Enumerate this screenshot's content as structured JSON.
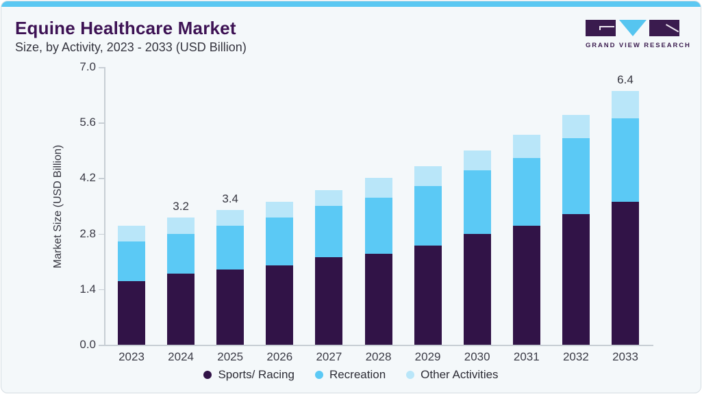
{
  "header": {
    "title": "Equine Healthcare Market",
    "subtitle": "Size, by Activity, 2023 - 2033 (USD Billion)"
  },
  "logo": {
    "text": "GRAND VIEW RESEARCH",
    "mark_colors": {
      "blocks": "#3a1b4e",
      "triangle": "#56c5f0"
    }
  },
  "colors": {
    "accent_strip": "#5bc8f2",
    "card_background": "#f4f8fa",
    "title_text": "#3d1254",
    "axis_line": "#c7ced4",
    "axis_text": "#3a3a45"
  },
  "chart_data": {
    "type": "bar",
    "stacked": true,
    "title": "Equine Healthcare Market Size, by Activity, 2023 - 2033 (USD Billion)",
    "xlabel": "",
    "ylabel": "Market Size (USD Billion)",
    "ylim": [
      0,
      7.0
    ],
    "yticks": [
      0.0,
      1.4,
      2.8,
      4.2,
      5.6,
      7.0
    ],
    "grid": false,
    "legend_position": "bottom",
    "categories": [
      "2023",
      "2024",
      "2025",
      "2026",
      "2027",
      "2028",
      "2029",
      "2030",
      "2031",
      "2032",
      "2033"
    ],
    "series": [
      {
        "name": "Sports/ Racing",
        "color": "#311347",
        "values": [
          1.6,
          1.8,
          1.9,
          2.0,
          2.2,
          2.3,
          2.5,
          2.8,
          3.0,
          3.3,
          3.6
        ]
      },
      {
        "name": "Recreation",
        "color": "#5bc9f5",
        "values": [
          1.0,
          1.0,
          1.1,
          1.2,
          1.3,
          1.4,
          1.5,
          1.6,
          1.7,
          1.9,
          2.1
        ]
      },
      {
        "name": "Other Activities",
        "color": "#b9e6f9",
        "values": [
          0.4,
          0.4,
          0.4,
          0.4,
          0.4,
          0.5,
          0.5,
          0.5,
          0.6,
          0.6,
          0.7
        ]
      }
    ],
    "totals": [
      3.0,
      3.2,
      3.4,
      3.6,
      3.9,
      4.2,
      4.5,
      4.9,
      5.3,
      5.8,
      6.4
    ],
    "data_labels": {
      "2024": "3.2",
      "2025": "3.4",
      "2033": "6.4"
    }
  }
}
